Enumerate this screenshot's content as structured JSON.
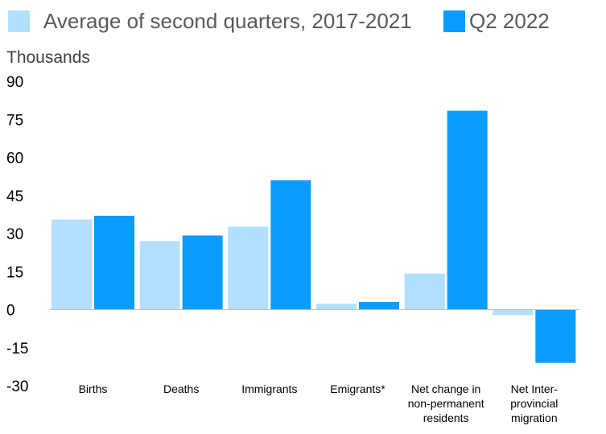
{
  "chart_data": {
    "type": "bar",
    "ylabel": "Thousands",
    "categories": [
      [
        "Births"
      ],
      [
        "Deaths"
      ],
      [
        "Immigrants"
      ],
      [
        "Emigrants*"
      ],
      [
        "Net change in",
        "non-permanent",
        "residents"
      ],
      [
        "Net Inter-",
        "provincial",
        "migration"
      ]
    ],
    "series": [
      {
        "name": "Average of second quarters, 2017-2021",
        "color": "#b3e0ff",
        "values": [
          35.5,
          27,
          32.7,
          2.3,
          14.2,
          -2.2
        ]
      },
      {
        "name": "Q2 2022",
        "color": "#0a9cff",
        "values": [
          37,
          29.2,
          51,
          3,
          78.4,
          -21
        ]
      }
    ],
    "yticks": [
      90,
      75,
      60,
      45,
      30,
      15,
      0,
      -15,
      -30
    ],
    "ylim": [
      -30,
      90
    ],
    "grid": false,
    "legend": "top"
  }
}
